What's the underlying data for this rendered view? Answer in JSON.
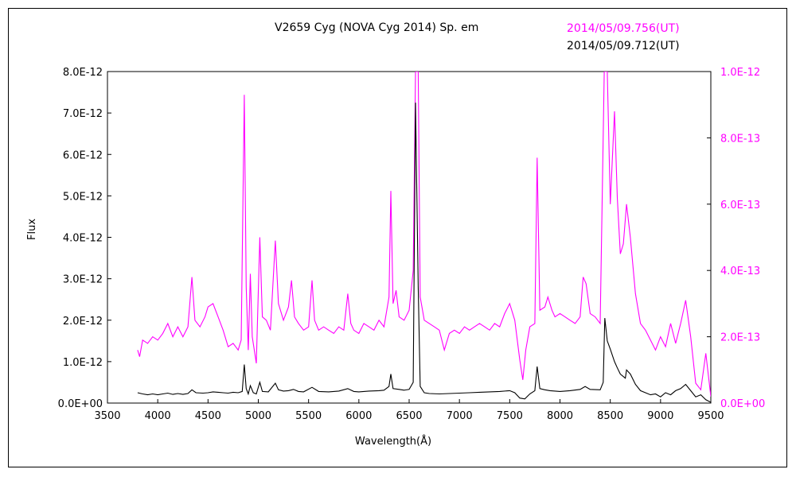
{
  "chart_data": {
    "type": "line",
    "title": "V2659 Cyg (NOVA Cyg 2014)    Sp. em",
    "xlabel": "Wavelength(Å)",
    "ylabel": "Flux",
    "xlim": [
      3500,
      9500
    ],
    "xticks": [
      "3500",
      "4000",
      "4500",
      "5000",
      "5500",
      "6000",
      "6500",
      "7000",
      "7500",
      "8000",
      "8500",
      "9000",
      "9500"
    ],
    "ylim_left": [
      0,
      8e-12
    ],
    "yticks_left": [
      "0.0E+00",
      "1.0E-12",
      "2.0E-12",
      "3.0E-12",
      "4.0E-12",
      "5.0E-12",
      "6.0E-12",
      "7.0E-12",
      "8.0E-12"
    ],
    "ylim_right": [
      0,
      1e-12
    ],
    "yticks_right": [
      "0.0E+00",
      "2.0E-13",
      "4.0E-13",
      "6.0E-13",
      "8.0E-13",
      "1.0E-12"
    ],
    "grid": false,
    "series": [
      {
        "name": "2014/05/09.756(UT)",
        "color": "#ff00ff",
        "axis": "right",
        "points": [
          [
            3800,
            1.6e-13
          ],
          [
            3820,
            1.4e-13
          ],
          [
            3850,
            1.9e-13
          ],
          [
            3900,
            1.8e-13
          ],
          [
            3950,
            2e-13
          ],
          [
            4000,
            1.9e-13
          ],
          [
            4050,
            2.1e-13
          ],
          [
            4100,
            2.4e-13
          ],
          [
            4150,
            2e-13
          ],
          [
            4200,
            2.3e-13
          ],
          [
            4250,
            2e-13
          ],
          [
            4300,
            2.3e-13
          ],
          [
            4340,
            3.8e-13
          ],
          [
            4370,
            2.5e-13
          ],
          [
            4420,
            2.3e-13
          ],
          [
            4470,
            2.6e-13
          ],
          [
            4500,
            2.9e-13
          ],
          [
            4550,
            3e-13
          ],
          [
            4600,
            2.6e-13
          ],
          [
            4650,
            2.2e-13
          ],
          [
            4700,
            1.7e-13
          ],
          [
            4750,
            1.8e-13
          ],
          [
            4800,
            1.6e-13
          ],
          [
            4830,
            1.9e-13
          ],
          [
            4861,
            9.3e-13
          ],
          [
            4880,
            3.5e-13
          ],
          [
            4900,
            1.6e-13
          ],
          [
            4921,
            3.9e-13
          ],
          [
            4940,
            2e-13
          ],
          [
            4980,
            1.2e-13
          ],
          [
            5015,
            5e-13
          ],
          [
            5040,
            2.6e-13
          ],
          [
            5080,
            2.5e-13
          ],
          [
            5120,
            2.2e-13
          ],
          [
            5169,
            4.9e-13
          ],
          [
            5200,
            3e-13
          ],
          [
            5250,
            2.5e-13
          ],
          [
            5300,
            2.9e-13
          ],
          [
            5330,
            3.7e-13
          ],
          [
            5360,
            2.6e-13
          ],
          [
            5400,
            2.4e-13
          ],
          [
            5450,
            2.2e-13
          ],
          [
            5500,
            2.3e-13
          ],
          [
            5534,
            3.7e-13
          ],
          [
            5560,
            2.5e-13
          ],
          [
            5600,
            2.2e-13
          ],
          [
            5650,
            2.3e-13
          ],
          [
            5700,
            2.2e-13
          ],
          [
            5750,
            2.1e-13
          ],
          [
            5800,
            2.3e-13
          ],
          [
            5850,
            2.2e-13
          ],
          [
            5890,
            3.3e-13
          ],
          [
            5920,
            2.4e-13
          ],
          [
            5950,
            2.2e-13
          ],
          [
            6000,
            2.1e-13
          ],
          [
            6050,
            2.4e-13
          ],
          [
            6100,
            2.3e-13
          ],
          [
            6150,
            2.2e-13
          ],
          [
            6200,
            2.5e-13
          ],
          [
            6250,
            2.3e-13
          ],
          [
            6300,
            3.2e-13
          ],
          [
            6318,
            6.4e-13
          ],
          [
            6340,
            3e-13
          ],
          [
            6370,
            3.4e-13
          ],
          [
            6400,
            2.6e-13
          ],
          [
            6450,
            2.5e-13
          ],
          [
            6500,
            2.8e-13
          ],
          [
            6540,
            4e-13
          ],
          [
            6563,
            1e-12
          ],
          [
            6590,
            1e-12
          ],
          [
            6610,
            3.2e-13
          ],
          [
            6650,
            2.5e-13
          ],
          [
            6700,
            2.4e-13
          ],
          [
            6750,
            2.3e-13
          ],
          [
            6800,
            2.2e-13
          ],
          [
            6850,
            1.6e-13
          ],
          [
            6900,
            2.1e-13
          ],
          [
            6950,
            2.2e-13
          ],
          [
            7000,
            2.1e-13
          ],
          [
            7050,
            2.3e-13
          ],
          [
            7100,
            2.2e-13
          ],
          [
            7150,
            2.3e-13
          ],
          [
            7200,
            2.4e-13
          ],
          [
            7250,
            2.3e-13
          ],
          [
            7300,
            2.2e-13
          ],
          [
            7350,
            2.4e-13
          ],
          [
            7400,
            2.3e-13
          ],
          [
            7450,
            2.7e-13
          ],
          [
            7500,
            3e-13
          ],
          [
            7550,
            2.5e-13
          ],
          [
            7600,
            1.3e-13
          ],
          [
            7630,
            7e-14
          ],
          [
            7660,
            1.6e-13
          ],
          [
            7700,
            2.3e-13
          ],
          [
            7750,
            2.4e-13
          ],
          [
            7773,
            7.4e-13
          ],
          [
            7800,
            2.8e-13
          ],
          [
            7850,
            2.9e-13
          ],
          [
            7880,
            3.2e-13
          ],
          [
            7920,
            2.8e-13
          ],
          [
            7950,
            2.6e-13
          ],
          [
            8000,
            2.7e-13
          ],
          [
            8050,
            2.6e-13
          ],
          [
            8100,
            2.5e-13
          ],
          [
            8150,
            2.4e-13
          ],
          [
            8200,
            2.6e-13
          ],
          [
            8230,
            3.8e-13
          ],
          [
            8260,
            3.6e-13
          ],
          [
            8300,
            2.7e-13
          ],
          [
            8350,
            2.6e-13
          ],
          [
            8400,
            2.4e-13
          ],
          [
            8440,
            1e-12
          ],
          [
            8470,
            1e-12
          ],
          [
            8500,
            6e-13
          ],
          [
            8542,
            8.8e-13
          ],
          [
            8570,
            6.2e-13
          ],
          [
            8600,
            4.5e-13
          ],
          [
            8630,
            4.8e-13
          ],
          [
            8662,
            6e-13
          ],
          [
            8700,
            5e-13
          ],
          [
            8750,
            3.3e-13
          ],
          [
            8800,
            2.4e-13
          ],
          [
            8850,
            2.2e-13
          ],
          [
            8900,
            1.9e-13
          ],
          [
            8950,
            1.6e-13
          ],
          [
            9000,
            2e-13
          ],
          [
            9050,
            1.7e-13
          ],
          [
            9100,
            2.4e-13
          ],
          [
            9150,
            1.8e-13
          ],
          [
            9200,
            2.4e-13
          ],
          [
            9250,
            3.1e-13
          ],
          [
            9300,
            2e-13
          ],
          [
            9350,
            6e-14
          ],
          [
            9400,
            4e-14
          ],
          [
            9450,
            1.5e-13
          ],
          [
            9500,
            2e-14
          ]
        ]
      },
      {
        "name": "2014/05/09.712(UT)",
        "color": "#000000",
        "axis": "left",
        "points": [
          [
            3800,
            2.5e-13
          ],
          [
            3850,
            2.2e-13
          ],
          [
            3900,
            2e-13
          ],
          [
            3950,
            2.2e-13
          ],
          [
            4000,
            2e-13
          ],
          [
            4050,
            2.2e-13
          ],
          [
            4100,
            2.4e-13
          ],
          [
            4150,
            2.1e-13
          ],
          [
            4200,
            2.3e-13
          ],
          [
            4250,
            2.1e-13
          ],
          [
            4300,
            2.3e-13
          ],
          [
            4340,
            3.2e-13
          ],
          [
            4380,
            2.5e-13
          ],
          [
            4450,
            2.4e-13
          ],
          [
            4500,
            2.5e-13
          ],
          [
            4550,
            2.7e-13
          ],
          [
            4600,
            2.6e-13
          ],
          [
            4650,
            2.5e-13
          ],
          [
            4700,
            2.4e-13
          ],
          [
            4750,
            2.6e-13
          ],
          [
            4800,
            2.5e-13
          ],
          [
            4840,
            2.8e-13
          ],
          [
            4861,
            9.3e-13
          ],
          [
            4880,
            3.5e-13
          ],
          [
            4900,
            2.2e-13
          ],
          [
            4921,
            4.2e-13
          ],
          [
            4950,
            2.5e-13
          ],
          [
            4980,
            2.2e-13
          ],
          [
            5015,
            5e-13
          ],
          [
            5040,
            2.8e-13
          ],
          [
            5100,
            2.7e-13
          ],
          [
            5169,
            4.8e-13
          ],
          [
            5200,
            3.2e-13
          ],
          [
            5250,
            2.9e-13
          ],
          [
            5300,
            3e-13
          ],
          [
            5350,
            3.3e-13
          ],
          [
            5400,
            2.8e-13
          ],
          [
            5450,
            2.7e-13
          ],
          [
            5534,
            3.8e-13
          ],
          [
            5600,
            2.8e-13
          ],
          [
            5700,
            2.7e-13
          ],
          [
            5800,
            2.9e-13
          ],
          [
            5890,
            3.5e-13
          ],
          [
            5950,
            2.8e-13
          ],
          [
            6000,
            2.7e-13
          ],
          [
            6100,
            2.9e-13
          ],
          [
            6200,
            3e-13
          ],
          [
            6250,
            3.1e-13
          ],
          [
            6300,
            4e-13
          ],
          [
            6318,
            7e-13
          ],
          [
            6340,
            3.5e-13
          ],
          [
            6400,
            3.3e-13
          ],
          [
            6450,
            3.1e-13
          ],
          [
            6500,
            3.3e-13
          ],
          [
            6540,
            5e-13
          ],
          [
            6563,
            7.25e-12
          ],
          [
            6590,
            2.8e-12
          ],
          [
            6610,
            4e-13
          ],
          [
            6650,
            2.5e-13
          ],
          [
            6700,
            2.3e-13
          ],
          [
            6800,
            2.2e-13
          ],
          [
            6900,
            2.3e-13
          ],
          [
            7000,
            2.4e-13
          ],
          [
            7100,
            2.5e-13
          ],
          [
            7200,
            2.6e-13
          ],
          [
            7300,
            2.7e-13
          ],
          [
            7400,
            2.8e-13
          ],
          [
            7500,
            3e-13
          ],
          [
            7550,
            2.5e-13
          ],
          [
            7600,
            1.2e-13
          ],
          [
            7650,
            1e-13
          ],
          [
            7700,
            2.2e-13
          ],
          [
            7750,
            3e-13
          ],
          [
            7773,
            8.8e-13
          ],
          [
            7800,
            3.5e-13
          ],
          [
            7850,
            3.2e-13
          ],
          [
            7900,
            3e-13
          ],
          [
            8000,
            2.8e-13
          ],
          [
            8100,
            3e-13
          ],
          [
            8200,
            3.3e-13
          ],
          [
            8250,
            4e-13
          ],
          [
            8300,
            3.3e-13
          ],
          [
            8400,
            3.2e-13
          ],
          [
            8430,
            5e-13
          ],
          [
            8446,
            2.05e-12
          ],
          [
            8470,
            1.5e-12
          ],
          [
            8500,
            1.3e-12
          ],
          [
            8542,
            1e-12
          ],
          [
            8570,
            8.5e-13
          ],
          [
            8600,
            7e-13
          ],
          [
            8650,
            6e-13
          ],
          [
            8662,
            8e-13
          ],
          [
            8700,
            7e-13
          ],
          [
            8750,
            4.5e-13
          ],
          [
            8800,
            3e-13
          ],
          [
            8850,
            2.5e-13
          ],
          [
            8900,
            2e-13
          ],
          [
            8950,
            2.2e-13
          ],
          [
            9000,
            1.5e-13
          ],
          [
            9050,
            2.5e-13
          ],
          [
            9100,
            2e-13
          ],
          [
            9150,
            3e-13
          ],
          [
            9200,
            3.5e-13
          ],
          [
            9250,
            4.5e-13
          ],
          [
            9300,
            3e-13
          ],
          [
            9350,
            1.5e-13
          ],
          [
            9400,
            2e-13
          ],
          [
            9450,
            8e-14
          ],
          [
            9500,
            2e-14
          ]
        ]
      }
    ]
  }
}
